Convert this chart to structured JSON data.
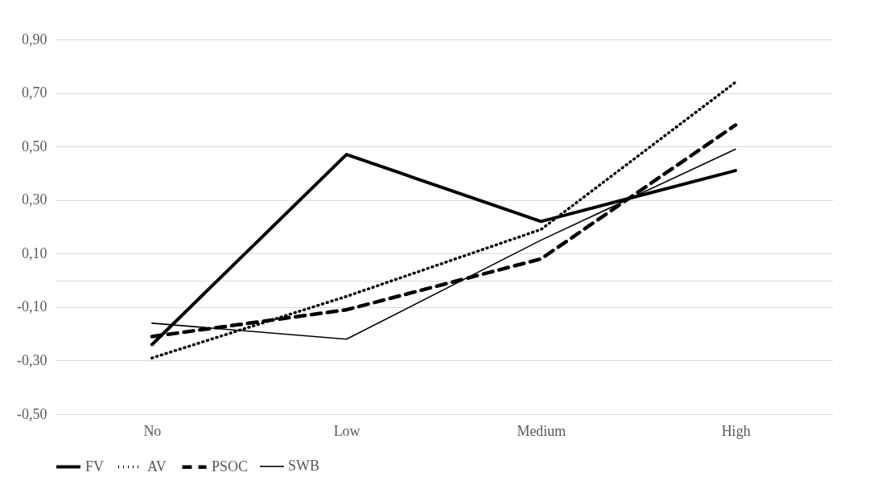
{
  "chart_data": {
    "type": "line",
    "categories": [
      "No",
      "Low",
      "Medium",
      "High"
    ],
    "series": [
      {
        "name": "FV",
        "color": "#000000",
        "line_style": "solid",
        "values": [
          -0.24,
          0.47,
          0.22,
          0.41
        ]
      },
      {
        "name": "AV",
        "color": "#000000",
        "line_style": "dotted",
        "values": [
          -0.29,
          -0.06,
          0.19,
          0.74
        ]
      },
      {
        "name": "PSOC",
        "color": "#000000",
        "line_style": "dashed",
        "values": [
          -0.21,
          -0.11,
          0.08,
          0.58
        ]
      },
      {
        "name": "SWB",
        "color": "#000000",
        "line_style": "solid",
        "values": [
          -0.16,
          -0.22,
          0.15,
          0.49
        ]
      }
    ],
    "ylim": [
      -0.5,
      0.9
    ],
    "yticks": [
      {
        "value": -0.5,
        "label": "-0,50"
      },
      {
        "value": -0.3,
        "label": "-0,30"
      },
      {
        "value": -0.1,
        "label": "-0,10"
      },
      {
        "value": 0,
        "label": null
      },
      {
        "value": 0.1,
        "label": "0,10"
      },
      {
        "value": 0.3,
        "label": "0,30"
      },
      {
        "value": 0.5,
        "label": "0,50"
      },
      {
        "value": 0.7,
        "label": "0,70"
      },
      {
        "value": 0.9,
        "label": "0,90"
      }
    ],
    "grid": "y",
    "legend": "bottom",
    "marker": "none"
  }
}
